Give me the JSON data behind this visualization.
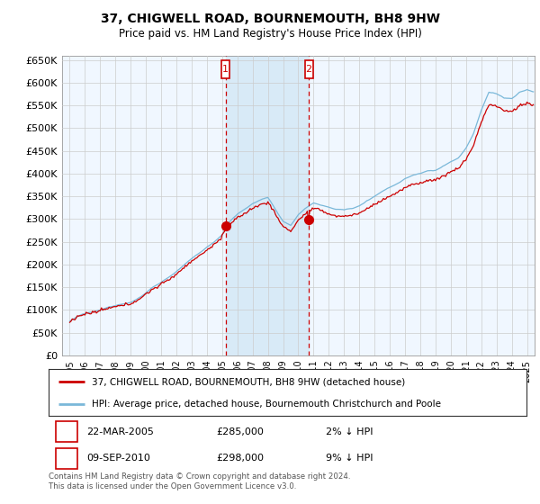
{
  "title": "37, CHIGWELL ROAD, BOURNEMOUTH, BH8 9HW",
  "subtitle": "Price paid vs. HM Land Registry's House Price Index (HPI)",
  "legend_line1": "37, CHIGWELL ROAD, BOURNEMOUTH, BH8 9HW (detached house)",
  "legend_line2": "HPI: Average price, detached house, Bournemouth Christchurch and Poole",
  "footnote": "Contains HM Land Registry data © Crown copyright and database right 2024.\nThis data is licensed under the Open Government Licence v3.0.",
  "sale1_date": "22-MAR-2005",
  "sale1_price": "£285,000",
  "sale1_hpi": "2% ↓ HPI",
  "sale2_date": "09-SEP-2010",
  "sale2_price": "£298,000",
  "sale2_hpi": "9% ↓ HPI",
  "sale1_year": 2005.23,
  "sale2_year": 2010.69,
  "sale1_value": 285000,
  "sale2_value": 298000,
  "hpi_color": "#7ab8d9",
  "price_color": "#cc0000",
  "background_color": "#ffffff",
  "plot_bg_color": "#f0f7ff",
  "shade_color": "#d8eaf7",
  "grid_color": "#cccccc",
  "ylim_min": 0,
  "ylim_max": 660000,
  "xmin": 1994.5,
  "xmax": 2025.5,
  "yticks": [
    0,
    50000,
    100000,
    150000,
    200000,
    250000,
    300000,
    350000,
    400000,
    450000,
    500000,
    550000,
    600000,
    650000
  ],
  "xticks": [
    1995,
    1996,
    1997,
    1998,
    1999,
    2000,
    2001,
    2002,
    2003,
    2004,
    2005,
    2006,
    2007,
    2008,
    2009,
    2010,
    2011,
    2012,
    2013,
    2014,
    2015,
    2016,
    2017,
    2018,
    2019,
    2020,
    2021,
    2022,
    2023,
    2024,
    2025
  ]
}
